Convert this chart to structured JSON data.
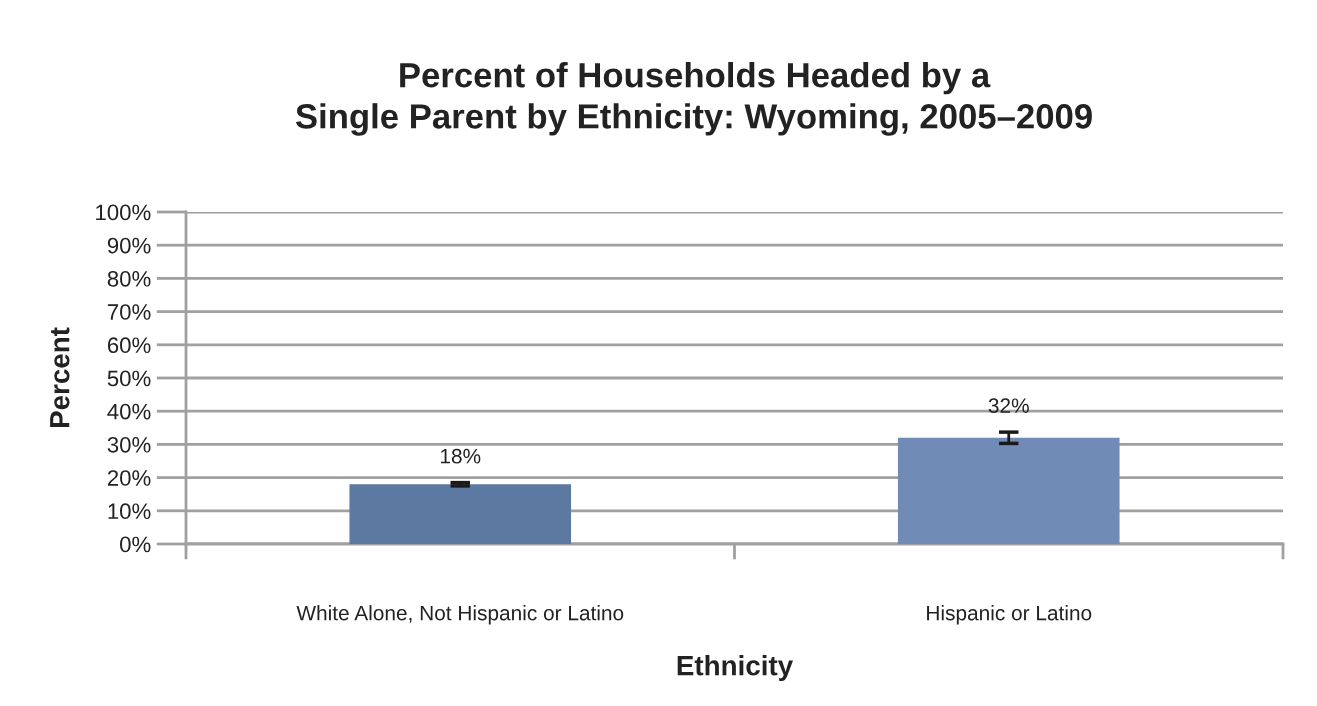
{
  "chart_data": {
    "type": "bar",
    "title": "Percent of Households Headed by a\nSingle Parent by Ethnicity: Wyoming, 2005–2009",
    "xlabel": "Ethnicity",
    "ylabel": "Percent",
    "categories": [
      "White Alone, Not Hispanic or Latino",
      "Hispanic or Latino"
    ],
    "values": [
      18,
      32
    ],
    "colors": [
      "#5b79a1",
      "#6f8bb6"
    ],
    "errors": [
      0.5,
      1.7
    ],
    "value_labels": [
      "18%",
      "32%"
    ],
    "ylim": [
      0,
      100
    ],
    "yticks": [
      {
        "value": 0,
        "label": "0%"
      },
      {
        "value": 10,
        "label": "10%"
      },
      {
        "value": 20,
        "label": "20%"
      },
      {
        "value": 30,
        "label": "30%"
      },
      {
        "value": 40,
        "label": "40%"
      },
      {
        "value": 50,
        "label": "50%"
      },
      {
        "value": 60,
        "label": "60%"
      },
      {
        "value": 70,
        "label": "70%"
      },
      {
        "value": 80,
        "label": "80%"
      },
      {
        "value": 90,
        "label": "90%"
      },
      {
        "value": 100,
        "label": "100%"
      }
    ],
    "grid": "y",
    "legend": false
  }
}
